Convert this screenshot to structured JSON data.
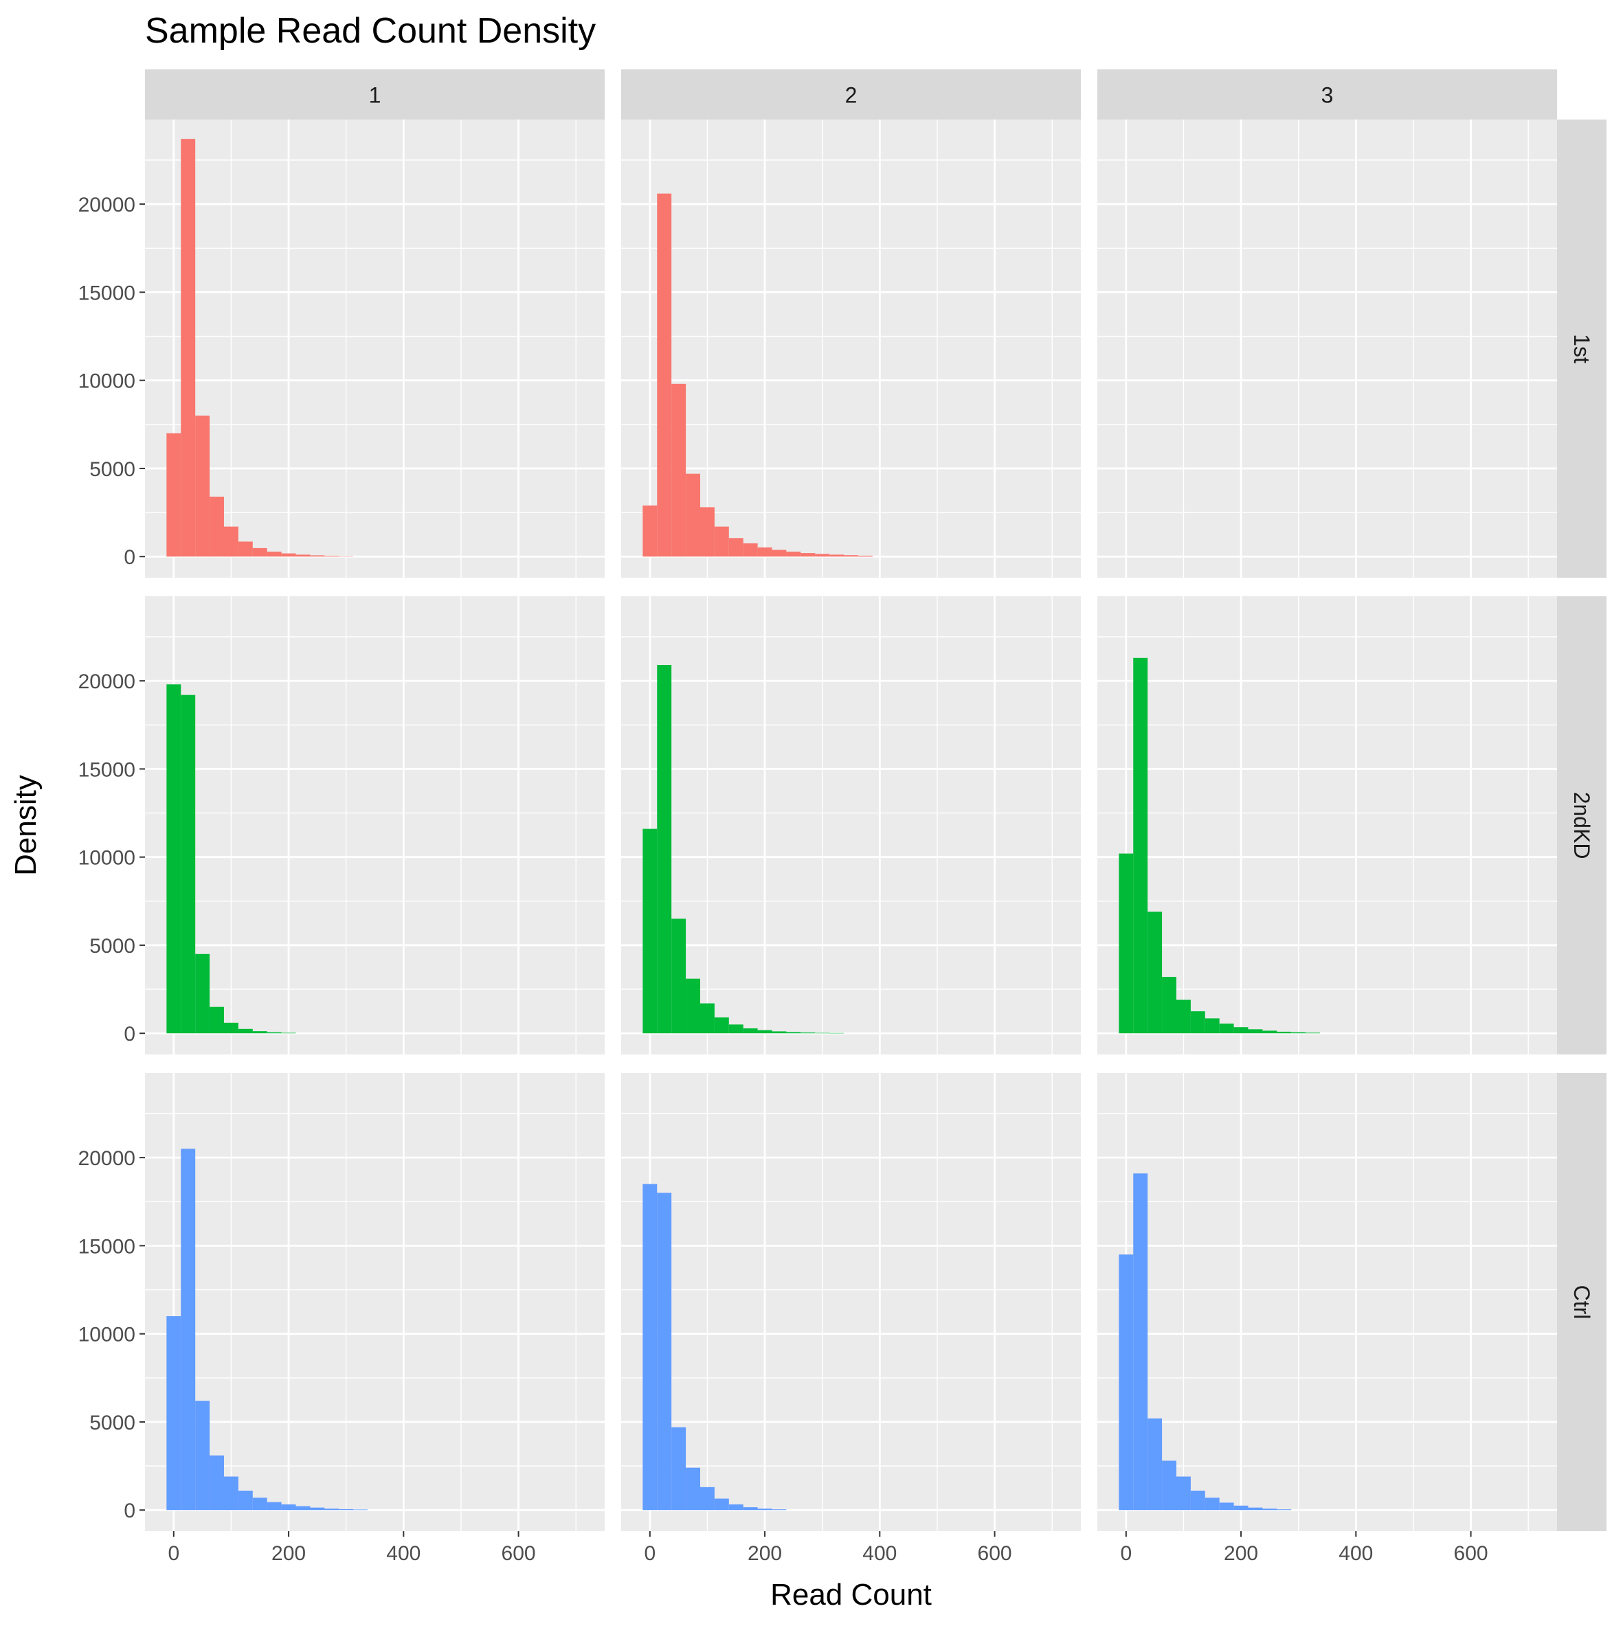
{
  "colors": {
    "panel_background": "#EBEBEB",
    "strip_background": "#D9D9D9",
    "grid": "#FFFFFF",
    "text": "#1A1A1A",
    "tick_text": "#4D4D4D",
    "tick_mark": "#333333"
  },
  "chart_data": {
    "type": "bar",
    "subtype": "faceted-histogram",
    "title": "Sample Read Count Density",
    "xlabel": "Read Count",
    "ylabel": "Density",
    "xlim": [
      -50,
      750
    ],
    "ylim": [
      -1200,
      24800
    ],
    "x_ticks": [
      0,
      200,
      400,
      600
    ],
    "y_ticks": [
      0,
      5000,
      10000,
      15000,
      20000
    ],
    "grid": true,
    "legend": "none",
    "bin_width": 25,
    "bin_start": -12.5,
    "col_facets": [
      "1",
      "2",
      "3"
    ],
    "row_facets": [
      "1st",
      "2ndKD",
      "Ctrl"
    ],
    "series_colors": {
      "1st": "#F8766D",
      "2ndKD": "#00BA38",
      "Ctrl": "#619CFF"
    },
    "panels": [
      {
        "row": "1st",
        "col": "1",
        "values": [
          7000,
          23700,
          8000,
          3400,
          1700,
          850,
          480,
          280,
          180,
          110,
          70,
          40,
          20
        ]
      },
      {
        "row": "1st",
        "col": "2",
        "values": [
          2900,
          20600,
          9800,
          4700,
          2800,
          1700,
          1050,
          750,
          520,
          380,
          280,
          200,
          150,
          110,
          80,
          50
        ]
      },
      {
        "row": "1st",
        "col": "3",
        "values": []
      },
      {
        "row": "2ndKD",
        "col": "1",
        "values": [
          19800,
          19200,
          4500,
          1500,
          600,
          250,
          120,
          60,
          30
        ]
      },
      {
        "row": "2ndKD",
        "col": "2",
        "values": [
          11600,
          20900,
          6500,
          3100,
          1700,
          900,
          500,
          280,
          180,
          110,
          70,
          45,
          25,
          15
        ]
      },
      {
        "row": "2ndKD",
        "col": "3",
        "values": [
          10200,
          21300,
          6900,
          3200,
          1900,
          1250,
          850,
          550,
          350,
          230,
          150,
          90,
          60,
          35
        ]
      },
      {
        "row": "Ctrl",
        "col": "1",
        "values": [
          11000,
          20500,
          6200,
          3100,
          1900,
          1100,
          700,
          450,
          320,
          220,
          140,
          80,
          50,
          30
        ]
      },
      {
        "row": "Ctrl",
        "col": "2",
        "values": [
          18500,
          18000,
          4700,
          2400,
          1300,
          650,
          320,
          160,
          80,
          40
        ]
      },
      {
        "row": "Ctrl",
        "col": "3",
        "values": [
          14500,
          19100,
          5200,
          2800,
          1900,
          1100,
          700,
          420,
          250,
          140,
          80,
          40
        ]
      }
    ]
  }
}
